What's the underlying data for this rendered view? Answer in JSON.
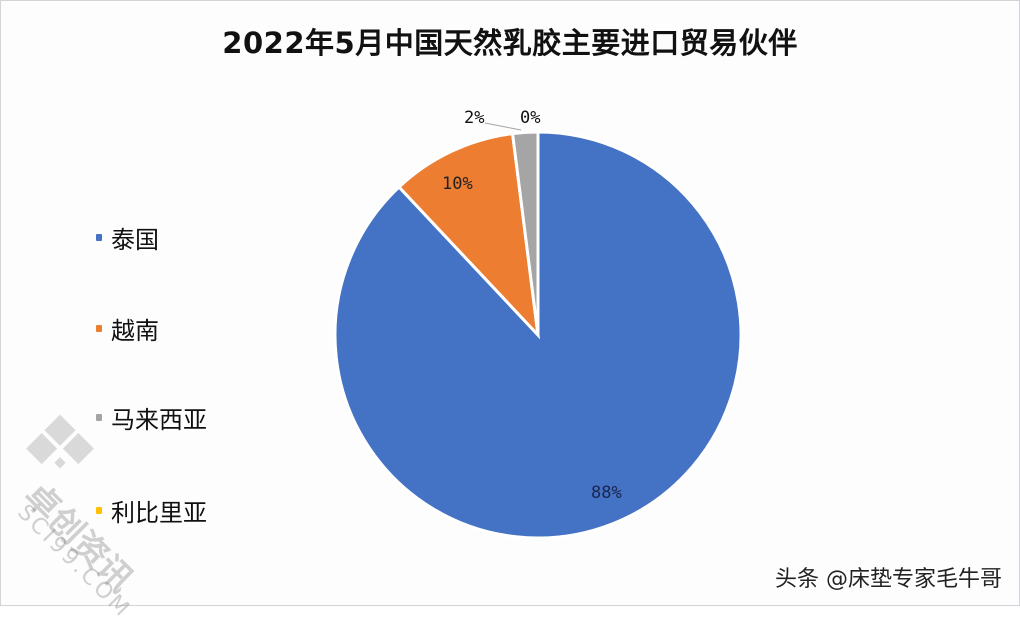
{
  "chart_data": {
    "type": "pie",
    "title": "2022年5月中国天然乳胶主要进口贸易伙伴",
    "categories": [
      "泰国",
      "越南",
      "马来西亚",
      "利比里亚"
    ],
    "values": [
      88,
      10,
      2,
      0
    ],
    "unit": "%",
    "data_labels": [
      "88%",
      "10%",
      "2%",
      "0%"
    ],
    "colors": [
      "#4472c4",
      "#ed7d31",
      "#a5a5a5",
      "#ffc000"
    ],
    "start_angle_deg": 0,
    "direction": "clockwise",
    "legend_position": "left"
  },
  "title": "2022年5月中国天然乳胶主要进口贸易伙伴",
  "legend": {
    "items": [
      {
        "label": "泰国",
        "color": "#4472c4"
      },
      {
        "label": "越南",
        "color": "#ed7d31"
      },
      {
        "label": "马来西亚",
        "color": "#a5a5a5"
      },
      {
        "label": "利比里亚",
        "color": "#ffc000"
      }
    ]
  },
  "labels": {
    "thailand": "88%",
    "vietnam": "10%",
    "malaysia": "2%",
    "liberia": "0%"
  },
  "watermark": {
    "text": "卓创资讯",
    "sub": "SCI99.COM"
  },
  "credit": "头条 @床垫专家毛牛哥"
}
